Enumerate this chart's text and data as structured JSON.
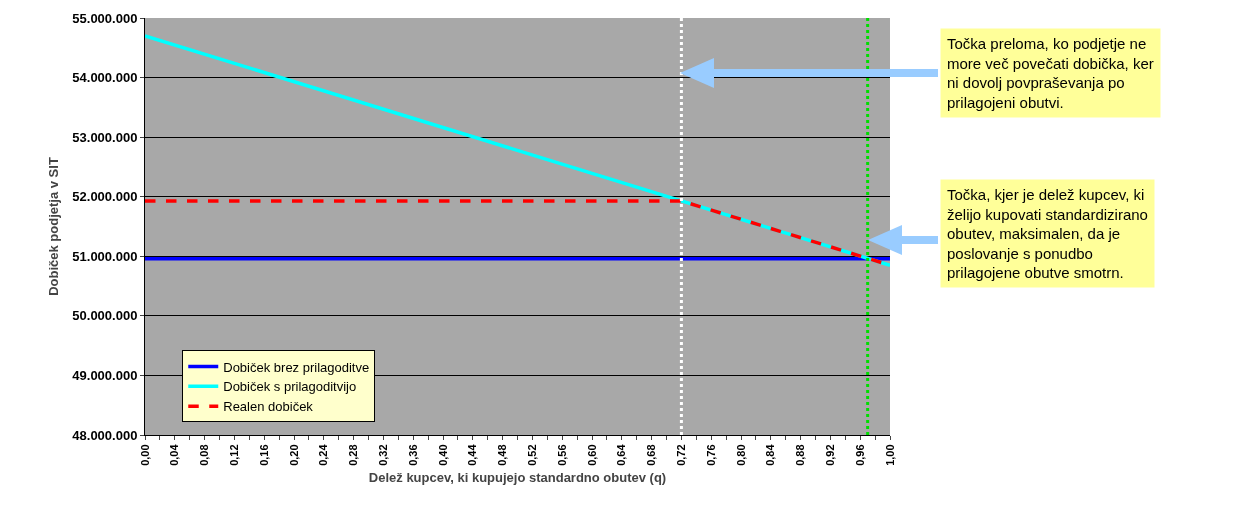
{
  "chart_data": {
    "type": "line",
    "xlabel": "Delež kupcev, ki kupujejo standardno obutev (q)",
    "ylabel": "Dobiček podjetja v SIT",
    "x": [
      0,
      0.72,
      1
    ],
    "series": [
      {
        "name": "Dobiček brez prilagoditve",
        "color": "#0000ff",
        "values": [
          50960000,
          50960000,
          50960000
        ],
        "line_style": "solid"
      },
      {
        "name": "Dobiček s prilagoditvijo",
        "color": "#00ffff",
        "values": [
          54700000,
          51930000,
          50850000
        ],
        "line_style": "solid"
      },
      {
        "name": "Realen dobiček",
        "color": "#ff0000",
        "values": [
          51930000,
          51930000,
          50850000
        ],
        "line_style": "dashed"
      }
    ],
    "xlim": [
      0,
      1
    ],
    "xticks": [
      {
        "value": 0,
        "label": "0,00"
      },
      {
        "value": 0.02,
        "label": null
      },
      {
        "value": 0.04,
        "label": "0,04"
      },
      {
        "value": 0.06,
        "label": null
      },
      {
        "value": 0.08,
        "label": "0,08"
      },
      {
        "value": 0.1,
        "label": null
      },
      {
        "value": 0.12,
        "label": "0,12"
      },
      {
        "value": 0.14,
        "label": null
      },
      {
        "value": 0.16,
        "label": "0,16"
      },
      {
        "value": 0.18,
        "label": null
      },
      {
        "value": 0.2,
        "label": "0,20"
      },
      {
        "value": 0.22,
        "label": null
      },
      {
        "value": 0.24,
        "label": "0,24"
      },
      {
        "value": 0.26,
        "label": null
      },
      {
        "value": 0.28,
        "label": "0,28"
      },
      {
        "value": 0.3,
        "label": null
      },
      {
        "value": 0.32,
        "label": "0,32"
      },
      {
        "value": 0.34,
        "label": null
      },
      {
        "value": 0.36,
        "label": "0,36"
      },
      {
        "value": 0.38,
        "label": null
      },
      {
        "value": 0.4,
        "label": "0,40"
      },
      {
        "value": 0.42,
        "label": null
      },
      {
        "value": 0.44,
        "label": "0,44"
      },
      {
        "value": 0.46,
        "label": null
      },
      {
        "value": 0.48,
        "label": "0,48"
      },
      {
        "value": 0.5,
        "label": null
      },
      {
        "value": 0.52,
        "label": "0,52"
      },
      {
        "value": 0.54,
        "label": null
      },
      {
        "value": 0.56,
        "label": "0,56"
      },
      {
        "value": 0.58,
        "label": null
      },
      {
        "value": 0.6,
        "label": "0,60"
      },
      {
        "value": 0.62,
        "label": null
      },
      {
        "value": 0.64,
        "label": "0,64"
      },
      {
        "value": 0.66,
        "label": null
      },
      {
        "value": 0.68,
        "label": "0,68"
      },
      {
        "value": 0.7,
        "label": null
      },
      {
        "value": 0.72,
        "label": "0,72"
      },
      {
        "value": 0.74,
        "label": null
      },
      {
        "value": 0.76,
        "label": "0,76"
      },
      {
        "value": 0.78,
        "label": null
      },
      {
        "value": 0.8,
        "label": "0,80"
      },
      {
        "value": 0.82,
        "label": null
      },
      {
        "value": 0.84,
        "label": "0,84"
      },
      {
        "value": 0.86,
        "label": null
      },
      {
        "value": 0.88,
        "label": "0,88"
      },
      {
        "value": 0.9,
        "label": null
      },
      {
        "value": 0.92,
        "label": "0,92"
      },
      {
        "value": 0.94,
        "label": null
      },
      {
        "value": 0.96,
        "label": "0,96"
      },
      {
        "value": 0.98,
        "label": null
      },
      {
        "value": 1,
        "label": "1,00"
      }
    ],
    "ylim": [
      48000000,
      55000000
    ],
    "yticks": [
      {
        "value": 48000000,
        "label": "48.000.000"
      },
      {
        "value": 49000000,
        "label": "49.000.000"
      },
      {
        "value": 50000000,
        "label": "50.000.000"
      },
      {
        "value": 51000000,
        "label": "51.000.000"
      },
      {
        "value": 52000000,
        "label": "52.000.000"
      },
      {
        "value": 53000000,
        "label": "53.000.000"
      },
      {
        "value": 54000000,
        "label": "54.000.000"
      },
      {
        "value": 55000000,
        "label": "55.000.000"
      }
    ],
    "grid": "y",
    "legend": "bottom left",
    "marker": "none",
    "ref_lines": [
      {
        "axis": "x",
        "value": 0.72,
        "color": "#ffffff",
        "line_style": "dotted"
      },
      {
        "axis": "x",
        "value": 0.97,
        "color": "#00dd00",
        "line_style": "dotted"
      }
    ],
    "annotations": [
      "Točka preloma, ko podjetje ne\nmore več povečati dobička, ker\nni dovolj povpraševanja po\nprilagojeni obutvi.",
      "Točka, kjer je delež kupcev, ki\nželijo kupovati standardizirano\nobutev, maksimalen, da je\nposlovanje s ponudbo\nprilagojene obutve smotrn."
    ]
  }
}
